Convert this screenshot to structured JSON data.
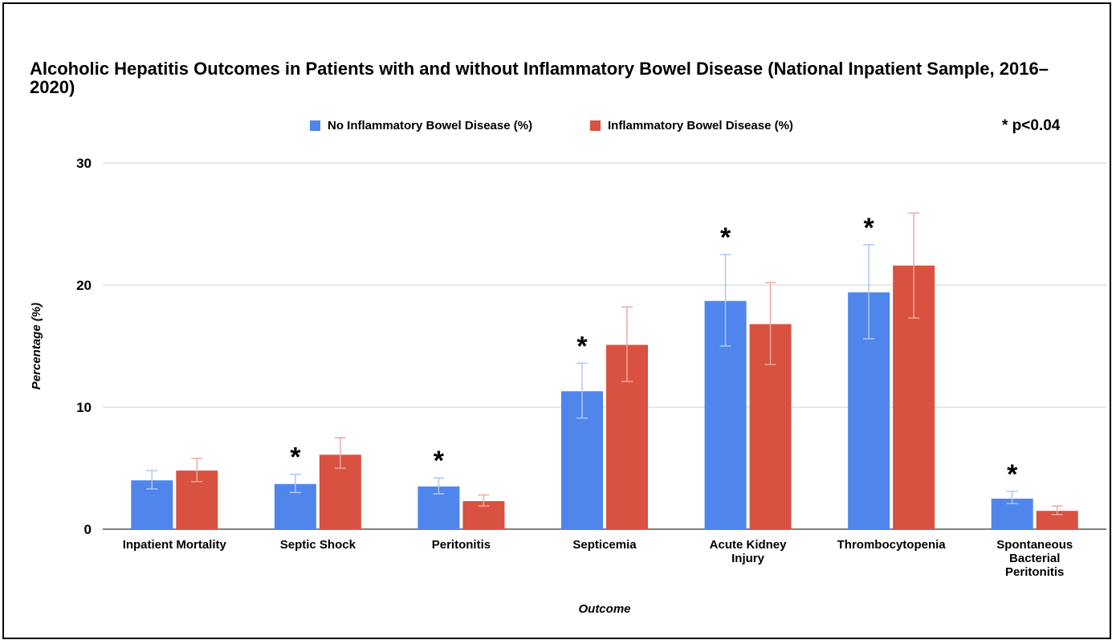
{
  "chart_data": {
    "type": "bar",
    "title": "Alcoholic Hepatitis Outcomes in Patients with and without Inflammatory Bowel Disease (National Inpatient Sample, 2016–2020)",
    "xlabel": "Outcome",
    "ylabel": "Percentage (%)",
    "ylim": [
      0,
      30
    ],
    "yticks": [
      "0",
      "10",
      "20",
      "30"
    ],
    "grid": true,
    "legend_position": "top",
    "significance_note": "* p<0.04",
    "significance_marker": "*",
    "categories": [
      [
        "Inpatient Mortality"
      ],
      [
        "Septic Shock"
      ],
      [
        "Peritonitis"
      ],
      [
        "Septicemia"
      ],
      [
        "Acute Kidney",
        "Injury"
      ],
      [
        "Thrombocytopenia"
      ],
      [
        "Spontaneous",
        "Bacterial",
        "Peritonitis"
      ]
    ],
    "significant": [
      false,
      true,
      true,
      true,
      true,
      true,
      true
    ],
    "series": [
      {
        "name": "No Inflammatory Bowel Disease (%)",
        "color": "#5085ec",
        "error_color": "#aec7f5",
        "values": [
          4.0,
          3.7,
          3.5,
          11.3,
          18.7,
          19.4,
          2.5
        ],
        "error_low": [
          3.3,
          3.0,
          2.9,
          9.1,
          15.0,
          15.6,
          2.1
        ],
        "error_high": [
          4.8,
          4.5,
          4.2,
          13.6,
          22.5,
          23.3,
          3.1
        ]
      },
      {
        "name": "Inflammatory Bowel Disease (%)",
        "color": "#d95141",
        "error_color": "#eea9a0",
        "values": [
          4.8,
          6.1,
          2.3,
          15.1,
          16.8,
          21.6,
          1.5
        ],
        "error_low": [
          3.9,
          5.0,
          1.9,
          12.1,
          13.5,
          17.3,
          1.2
        ],
        "error_high": [
          5.8,
          7.5,
          2.8,
          18.2,
          20.2,
          25.9,
          1.9
        ]
      }
    ]
  }
}
